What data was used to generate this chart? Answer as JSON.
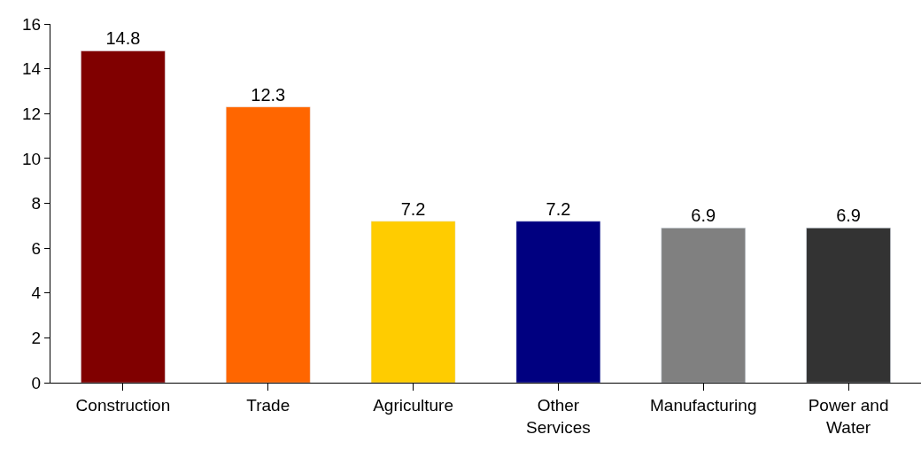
{
  "chart_data": {
    "type": "bar",
    "categories": [
      "Construction",
      "Trade",
      "Agriculture",
      "Other\nServices",
      "Manufacturing",
      "Power and\nWater"
    ],
    "values": [
      14.8,
      12.3,
      7.2,
      7.2,
      6.9,
      6.9
    ],
    "colors": [
      "#800000",
      "#ff6600",
      "#ffcc00",
      "#000080",
      "#808080",
      "#333333"
    ],
    "ylim": [
      0,
      16
    ],
    "yticks": [
      0,
      2,
      4,
      6,
      8,
      10,
      12,
      14,
      16
    ],
    "data_labels": true
  }
}
